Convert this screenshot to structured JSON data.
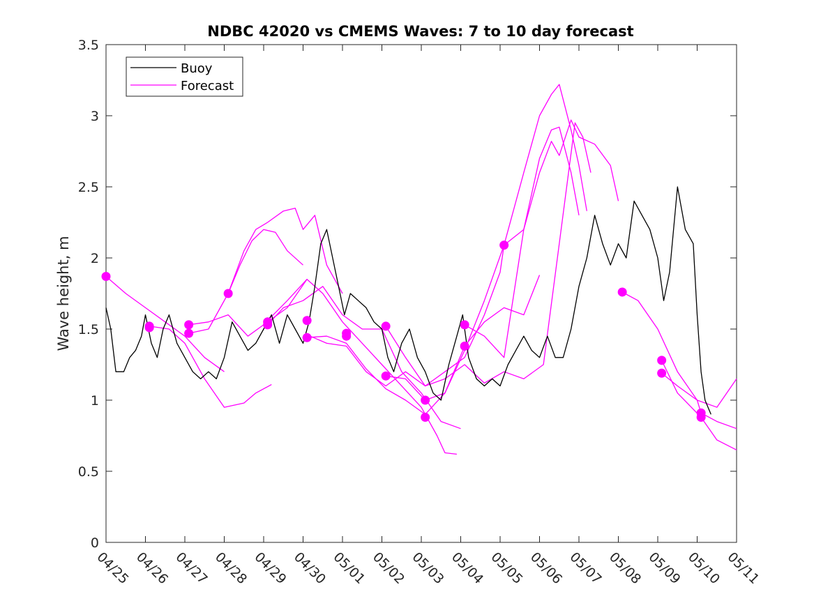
{
  "chart_data": {
    "type": "line",
    "title": "NDBC 42020 vs CMEMS Waves: 7 to 10 day forecast",
    "xlabel": "",
    "ylabel": "Wave height, m",
    "xlim": [
      0,
      16
    ],
    "ylim": [
      0,
      3.5
    ],
    "x_ticks": [
      0,
      1,
      2,
      3,
      4,
      5,
      6,
      7,
      8,
      9,
      10,
      11,
      12,
      13,
      14,
      15,
      16
    ],
    "x_tick_labels": [
      "04/25",
      "04/26",
      "04/27",
      "04/28",
      "04/29",
      "04/30",
      "05/01",
      "05/02",
      "05/03",
      "05/04",
      "05/05",
      "05/06",
      "05/07",
      "05/08",
      "05/09",
      "05/10",
      "05/11"
    ],
    "y_ticks": [
      0,
      0.5,
      1,
      1.5,
      2,
      2.5,
      3,
      3.5
    ],
    "y_tick_labels": [
      "0",
      "0.5",
      "1",
      "1.5",
      "2",
      "2.5",
      "3",
      "3.5"
    ],
    "grid": false,
    "legend_position": "top-left",
    "colors": {
      "buoy": "#000000",
      "forecast": "#ff00ff"
    },
    "series": [
      {
        "name": "Buoy",
        "role": "observed",
        "points": [
          [
            0,
            1.65
          ],
          [
            0.12,
            1.5
          ],
          [
            0.25,
            1.2
          ],
          [
            0.45,
            1.2
          ],
          [
            0.6,
            1.3
          ],
          [
            0.75,
            1.35
          ],
          [
            0.9,
            1.45
          ],
          [
            1.0,
            1.6
          ],
          [
            1.15,
            1.4
          ],
          [
            1.3,
            1.3
          ],
          [
            1.45,
            1.5
          ],
          [
            1.6,
            1.6
          ],
          [
            1.8,
            1.4
          ],
          [
            2.0,
            1.3
          ],
          [
            2.2,
            1.2
          ],
          [
            2.4,
            1.15
          ],
          [
            2.6,
            1.2
          ],
          [
            2.8,
            1.15
          ],
          [
            3.0,
            1.3
          ],
          [
            3.2,
            1.55
          ],
          [
            3.4,
            1.45
          ],
          [
            3.6,
            1.35
          ],
          [
            3.8,
            1.4
          ],
          [
            4.0,
            1.5
          ],
          [
            4.2,
            1.6
          ],
          [
            4.4,
            1.4
          ],
          [
            4.6,
            1.6
          ],
          [
            4.8,
            1.5
          ],
          [
            5.0,
            1.4
          ],
          [
            5.15,
            1.55
          ],
          [
            5.3,
            1.8
          ],
          [
            5.45,
            2.1
          ],
          [
            5.6,
            2.2
          ],
          [
            5.75,
            2.0
          ],
          [
            5.9,
            1.8
          ],
          [
            6.05,
            1.6
          ],
          [
            6.2,
            1.75
          ],
          [
            6.4,
            1.7
          ],
          [
            6.6,
            1.65
          ],
          [
            6.8,
            1.55
          ],
          [
            7.0,
            1.5
          ],
          [
            7.15,
            1.3
          ],
          [
            7.3,
            1.2
          ],
          [
            7.5,
            1.4
          ],
          [
            7.7,
            1.5
          ],
          [
            7.9,
            1.3
          ],
          [
            8.1,
            1.2
          ],
          [
            8.3,
            1.05
          ],
          [
            8.5,
            1.0
          ],
          [
            8.7,
            1.25
          ],
          [
            8.9,
            1.45
          ],
          [
            9.05,
            1.6
          ],
          [
            9.2,
            1.3
          ],
          [
            9.4,
            1.15
          ],
          [
            9.6,
            1.1
          ],
          [
            9.8,
            1.15
          ],
          [
            10.0,
            1.1
          ],
          [
            10.2,
            1.25
          ],
          [
            10.4,
            1.35
          ],
          [
            10.6,
            1.45
          ],
          [
            10.8,
            1.35
          ],
          [
            11.0,
            1.3
          ],
          [
            11.2,
            1.45
          ],
          [
            11.4,
            1.3
          ],
          [
            11.6,
            1.3
          ],
          [
            11.8,
            1.5
          ],
          [
            12.0,
            1.8
          ],
          [
            12.2,
            2.0
          ],
          [
            12.4,
            2.3
          ],
          [
            12.6,
            2.1
          ],
          [
            12.8,
            1.95
          ],
          [
            13.0,
            2.1
          ],
          [
            13.2,
            2.0
          ],
          [
            13.4,
            2.4
          ],
          [
            13.6,
            2.3
          ],
          [
            13.8,
            2.2
          ],
          [
            14.0,
            2.0
          ],
          [
            14.15,
            1.7
          ],
          [
            14.3,
            1.9
          ],
          [
            14.5,
            2.5
          ],
          [
            14.7,
            2.2
          ],
          [
            14.9,
            2.1
          ],
          [
            15.0,
            1.6
          ],
          [
            15.1,
            1.2
          ],
          [
            15.2,
            1.0
          ],
          [
            15.35,
            0.9
          ]
        ]
      },
      {
        "name": "Forecast",
        "role": "forecast",
        "points": [
          [
            0,
            1.87
          ],
          [
            0.5,
            1.75
          ],
          [
            1.0,
            1.65
          ],
          [
            1.5,
            1.55
          ],
          [
            2.0,
            1.45
          ],
          [
            2.5,
            1.3
          ],
          [
            3.0,
            1.2
          ]
        ]
      },
      {
        "name": "",
        "role": "forecast",
        "points": [
          [
            1.1,
            1.52
          ],
          [
            1.6,
            1.5
          ],
          [
            2.0,
            1.4
          ],
          [
            2.5,
            1.15
          ],
          [
            3.0,
            0.95
          ],
          [
            3.5,
            0.98
          ],
          [
            3.8,
            1.05
          ],
          [
            4.2,
            1.11
          ]
        ]
      },
      {
        "name": "",
        "role": "forecast",
        "points": [
          [
            2.1,
            1.53
          ],
          [
            2.6,
            1.55
          ],
          [
            3.1,
            1.6
          ],
          [
            3.6,
            1.45
          ],
          [
            4.1,
            1.55
          ],
          [
            4.6,
            1.65
          ],
          [
            5.1,
            1.85
          ]
        ]
      },
      {
        "name": "",
        "role": "forecast",
        "points": [
          [
            2.1,
            1.47
          ],
          [
            2.6,
            1.5
          ],
          [
            3.1,
            1.75
          ],
          [
            3.4,
            1.95
          ],
          [
            3.7,
            2.12
          ],
          [
            4.0,
            2.2
          ],
          [
            4.3,
            2.18
          ],
          [
            4.6,
            2.05
          ],
          [
            5.0,
            1.95
          ]
        ]
      },
      {
        "name": "",
        "role": "forecast",
        "points": [
          [
            3.1,
            1.75
          ],
          [
            3.5,
            2.05
          ],
          [
            3.8,
            2.2
          ],
          [
            4.1,
            2.25
          ],
          [
            4.5,
            2.33
          ],
          [
            4.8,
            2.35
          ],
          [
            5.0,
            2.2
          ],
          [
            5.3,
            2.3
          ],
          [
            5.6,
            1.95
          ],
          [
            6.0,
            1.75
          ]
        ]
      },
      {
        "name": "",
        "role": "forecast",
        "points": [
          [
            4.1,
            1.53
          ],
          [
            4.5,
            1.65
          ],
          [
            5.0,
            1.7
          ],
          [
            5.5,
            1.8
          ],
          [
            6.0,
            1.6
          ],
          [
            6.5,
            1.5
          ],
          [
            7.0,
            1.5
          ],
          [
            7.5,
            1.2
          ],
          [
            8.0,
            1.05
          ],
          [
            8.5,
            0.85
          ],
          [
            9.0,
            0.8
          ]
        ]
      },
      {
        "name": "",
        "role": "forecast",
        "points": [
          [
            4.1,
            1.56
          ],
          [
            4.6,
            1.7
          ],
          [
            5.1,
            1.85
          ],
          [
            5.5,
            1.75
          ],
          [
            6.0,
            1.55
          ],
          [
            6.5,
            1.4
          ],
          [
            7.0,
            1.25
          ],
          [
            7.5,
            1.1
          ],
          [
            8.0,
            0.95
          ],
          [
            8.4,
            0.75
          ],
          [
            8.6,
            0.63
          ],
          [
            8.9,
            0.62
          ]
        ]
      },
      {
        "name": "",
        "role": "forecast",
        "points": [
          [
            5.1,
            1.46
          ],
          [
            5.6,
            1.4
          ],
          [
            6.1,
            1.38
          ],
          [
            6.6,
            1.2
          ],
          [
            7.1,
            1.1
          ],
          [
            7.6,
            1.2
          ],
          [
            8.1,
            1.1
          ],
          [
            8.6,
            1.2
          ],
          [
            9.1,
            1.3
          ],
          [
            9.6,
            1.6
          ],
          [
            10.0,
            1.9
          ],
          [
            10.1,
            2.09
          ],
          [
            10.6,
            2.2
          ],
          [
            11.0,
            2.6
          ],
          [
            11.3,
            2.82
          ],
          [
            11.5,
            2.72
          ],
          [
            11.8,
            2.97
          ],
          [
            12.0,
            2.85
          ],
          [
            12.4,
            2.8
          ],
          [
            12.8,
            2.65
          ],
          [
            13.0,
            2.4
          ]
        ]
      },
      {
        "name": "",
        "role": "forecast",
        "points": [
          [
            5.1,
            1.44
          ],
          [
            5.6,
            1.45
          ],
          [
            6.1,
            1.4
          ],
          [
            6.6,
            1.22
          ],
          [
            7.1,
            1.08
          ],
          [
            7.6,
            1.0
          ],
          [
            8.1,
            0.9
          ],
          [
            8.6,
            1.05
          ],
          [
            9.1,
            1.35
          ],
          [
            9.6,
            1.7
          ],
          [
            10.1,
            2.09
          ],
          [
            10.6,
            2.6
          ],
          [
            11.0,
            3.0
          ],
          [
            11.3,
            3.15
          ],
          [
            11.5,
            3.22
          ],
          [
            11.8,
            2.9
          ],
          [
            12.0,
            2.65
          ],
          [
            12.2,
            2.33
          ]
        ]
      },
      {
        "name": "",
        "role": "forecast",
        "points": [
          [
            7.1,
            1.17
          ],
          [
            7.6,
            1.15
          ],
          [
            8.1,
            1.0
          ],
          [
            8.6,
            1.05
          ],
          [
            9.1,
            1.38
          ],
          [
            9.6,
            1.55
          ],
          [
            10.1,
            1.65
          ],
          [
            10.6,
            1.6
          ],
          [
            11.0,
            1.88
          ]
        ]
      },
      {
        "name": "",
        "role": "forecast",
        "points": [
          [
            7.1,
            1.52
          ],
          [
            7.6,
            1.3
          ],
          [
            8.1,
            1.1
          ],
          [
            8.6,
            1.15
          ],
          [
            9.1,
            1.25
          ],
          [
            9.6,
            1.12
          ],
          [
            10.1,
            1.2
          ],
          [
            10.6,
            1.15
          ],
          [
            11.1,
            1.25
          ],
          [
            11.5,
            2.1
          ],
          [
            11.9,
            2.95
          ],
          [
            12.1,
            2.85
          ],
          [
            12.3,
            2.6
          ]
        ]
      },
      {
        "name": "",
        "role": "forecast",
        "points": [
          [
            9.1,
            1.53
          ],
          [
            9.6,
            1.45
          ],
          [
            10.1,
            1.3
          ],
          [
            10.6,
            2.2
          ],
          [
            11.0,
            2.7
          ],
          [
            11.3,
            2.9
          ],
          [
            11.5,
            2.92
          ],
          [
            11.8,
            2.6
          ],
          [
            12.0,
            2.3
          ]
        ]
      },
      {
        "name": "",
        "role": "forecast",
        "points": [
          [
            13.1,
            1.76
          ],
          [
            13.5,
            1.7
          ],
          [
            14.0,
            1.5
          ],
          [
            14.5,
            1.2
          ],
          [
            15.0,
            1.0
          ],
          [
            15.1,
            0.91
          ],
          [
            15.5,
            0.85
          ],
          [
            16.0,
            0.8
          ]
        ]
      },
      {
        "name": "",
        "role": "forecast",
        "points": [
          [
            14.1,
            1.28
          ],
          [
            14.5,
            1.05
          ],
          [
            15.1,
            0.88
          ],
          [
            15.5,
            0.72
          ],
          [
            16.0,
            0.65
          ]
        ]
      },
      {
        "name": "",
        "role": "forecast",
        "points": [
          [
            14.1,
            1.19
          ],
          [
            14.5,
            1.1
          ],
          [
            15.0,
            1.0
          ],
          [
            15.5,
            0.95
          ],
          [
            16.0,
            1.15
          ]
        ]
      }
    ],
    "markers": [
      [
        0,
        1.87
      ],
      [
        1.1,
        1.52
      ],
      [
        1.1,
        1.51
      ],
      [
        2.1,
        1.53
      ],
      [
        2.1,
        1.47
      ],
      [
        3.1,
        1.75
      ],
      [
        4.1,
        1.55
      ],
      [
        4.1,
        1.53
      ],
      [
        5.1,
        1.56
      ],
      [
        5.1,
        1.44
      ],
      [
        6.1,
        1.47
      ],
      [
        6.1,
        1.45
      ],
      [
        7.1,
        1.52
      ],
      [
        7.1,
        1.17
      ],
      [
        8.1,
        1.0
      ],
      [
        8.1,
        0.88
      ],
      [
        9.1,
        1.53
      ],
      [
        9.1,
        1.38
      ],
      [
        10.1,
        2.09
      ],
      [
        13.1,
        1.76
      ],
      [
        14.1,
        1.28
      ],
      [
        14.1,
        1.19
      ],
      [
        15.1,
        0.91
      ],
      [
        15.1,
        0.88
      ]
    ]
  }
}
